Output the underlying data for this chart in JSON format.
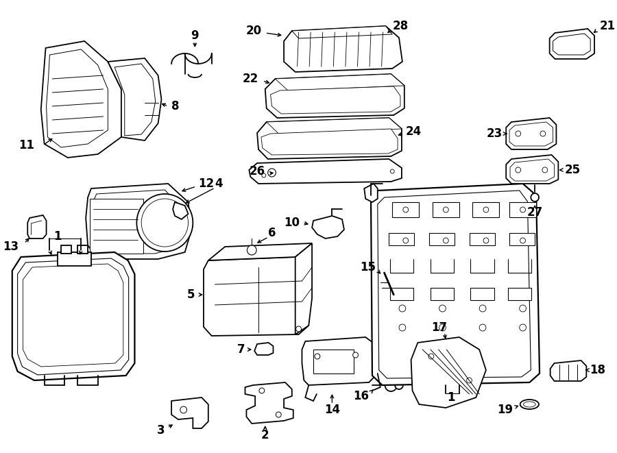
{
  "bg_color": "#ffffff",
  "line_color": "#000000",
  "label_fontsize": 12,
  "fig_width": 9.0,
  "fig_height": 6.61,
  "dpi": 100
}
